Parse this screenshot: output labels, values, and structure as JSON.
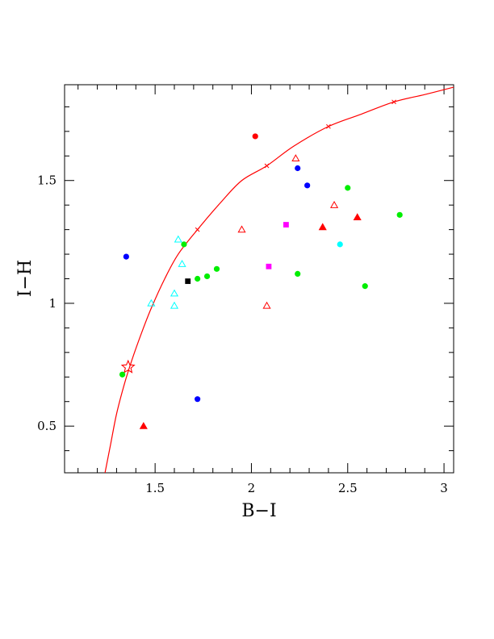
{
  "chart_data": {
    "type": "scatter",
    "xlabel": "B−I",
    "ylabel": "I−H",
    "xlim": [
      1.03,
      3.05
    ],
    "ylim": [
      0.31,
      1.89
    ],
    "x_ticks": [
      {
        "value": 1.5,
        "label": "1.5"
      },
      {
        "value": 2,
        "label": "2"
      },
      {
        "value": 2.5,
        "label": "2.5"
      },
      {
        "value": 3,
        "label": "3"
      }
    ],
    "y_ticks": [
      {
        "value": 0.5,
        "label": "0.5"
      },
      {
        "value": 1,
        "label": "1"
      },
      {
        "value": 1.5,
        "label": "1.5"
      }
    ],
    "grid": false,
    "colors": {
      "red": "#ff0000",
      "blue": "#0000ff",
      "green": "#00ee00",
      "cyan": "#00ffff",
      "magenta": "#ff00ff",
      "black": "#000000",
      "curve": "#ff0000"
    },
    "curve": {
      "points": [
        [
          1.24,
          0.31
        ],
        [
          1.27,
          0.43
        ],
        [
          1.3,
          0.55
        ],
        [
          1.34,
          0.67
        ],
        [
          1.38,
          0.77
        ],
        [
          1.43,
          0.88
        ],
        [
          1.48,
          0.98
        ],
        [
          1.55,
          1.1
        ],
        [
          1.62,
          1.2
        ],
        [
          1.72,
          1.3
        ],
        [
          1.84,
          1.41
        ],
        [
          1.95,
          1.5
        ],
        [
          2.08,
          1.56
        ],
        [
          2.22,
          1.64
        ],
        [
          2.4,
          1.72
        ],
        [
          2.57,
          1.77
        ],
        [
          2.74,
          1.82
        ],
        [
          2.9,
          1.85
        ],
        [
          3.05,
          1.88
        ]
      ],
      "cross_markers": [
        [
          1.72,
          1.3
        ],
        [
          2.08,
          1.56
        ],
        [
          2.4,
          1.72
        ],
        [
          2.74,
          1.82
        ]
      ],
      "star_marker": [
        1.36,
        0.74
      ]
    },
    "points": [
      {
        "x": 2.02,
        "y": 1.68,
        "shape": "circle",
        "color": "red"
      },
      {
        "x": 2.24,
        "y": 1.55,
        "shape": "circle",
        "color": "blue"
      },
      {
        "x": 2.29,
        "y": 1.48,
        "shape": "circle",
        "color": "blue"
      },
      {
        "x": 1.35,
        "y": 1.19,
        "shape": "circle",
        "color": "blue"
      },
      {
        "x": 1.72,
        "y": 0.61,
        "shape": "circle",
        "color": "blue"
      },
      {
        "x": 2.5,
        "y": 1.47,
        "shape": "circle",
        "color": "green"
      },
      {
        "x": 2.77,
        "y": 1.36,
        "shape": "circle",
        "color": "green"
      },
      {
        "x": 1.65,
        "y": 1.24,
        "shape": "circle",
        "color": "green"
      },
      {
        "x": 1.82,
        "y": 1.14,
        "shape": "circle",
        "color": "green"
      },
      {
        "x": 1.77,
        "y": 1.11,
        "shape": "circle",
        "color": "green"
      },
      {
        "x": 1.72,
        "y": 1.1,
        "shape": "circle",
        "color": "green"
      },
      {
        "x": 2.24,
        "y": 1.12,
        "shape": "circle",
        "color": "green"
      },
      {
        "x": 2.59,
        "y": 1.07,
        "shape": "circle",
        "color": "green"
      },
      {
        "x": 1.33,
        "y": 0.71,
        "shape": "circle",
        "color": "green"
      },
      {
        "x": 2.46,
        "y": 1.24,
        "shape": "circle",
        "color": "cyan"
      },
      {
        "x": 2.23,
        "y": 1.59,
        "shape": "triangle-open",
        "color": "red"
      },
      {
        "x": 2.43,
        "y": 1.4,
        "shape": "triangle-open",
        "color": "red"
      },
      {
        "x": 1.95,
        "y": 1.3,
        "shape": "triangle-open",
        "color": "red"
      },
      {
        "x": 2.08,
        "y": 0.99,
        "shape": "triangle-open",
        "color": "red"
      },
      {
        "x": 2.37,
        "y": 1.31,
        "shape": "triangle-filled",
        "color": "red"
      },
      {
        "x": 2.55,
        "y": 1.35,
        "shape": "triangle-filled",
        "color": "red"
      },
      {
        "x": 1.44,
        "y": 0.5,
        "shape": "triangle-filled",
        "color": "red"
      },
      {
        "x": 1.62,
        "y": 1.26,
        "shape": "triangle-open",
        "color": "cyan"
      },
      {
        "x": 1.64,
        "y": 1.16,
        "shape": "triangle-open",
        "color": "cyan"
      },
      {
        "x": 1.6,
        "y": 1.04,
        "shape": "triangle-open",
        "color": "cyan"
      },
      {
        "x": 1.48,
        "y": 1.0,
        "shape": "triangle-open",
        "color": "cyan"
      },
      {
        "x": 1.6,
        "y": 0.99,
        "shape": "triangle-open",
        "color": "cyan"
      },
      {
        "x": 2.18,
        "y": 1.32,
        "shape": "square",
        "color": "magenta"
      },
      {
        "x": 2.09,
        "y": 1.15,
        "shape": "square",
        "color": "magenta"
      },
      {
        "x": 1.67,
        "y": 1.09,
        "shape": "square",
        "color": "black"
      }
    ]
  }
}
